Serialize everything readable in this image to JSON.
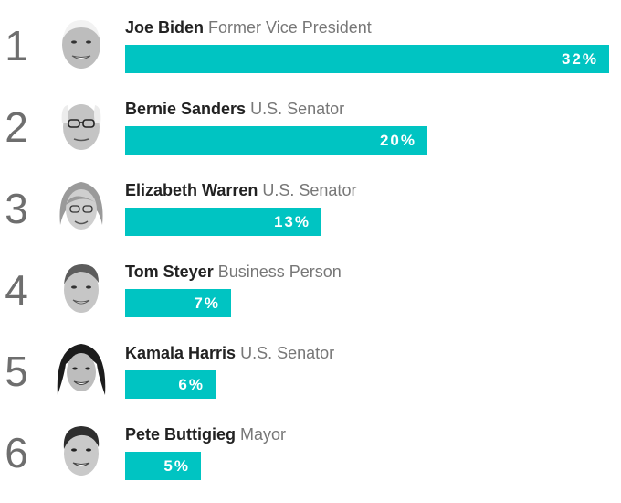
{
  "chart_data": {
    "type": "bar",
    "orientation": "horizontal",
    "bar_color": "#00c4c2",
    "xlim": [
      0,
      32
    ],
    "categories": [
      "Joe Biden",
      "Bernie Sanders",
      "Elizabeth Warren",
      "Tom Steyer",
      "Kamala Harris",
      "Pete Buttigieg"
    ],
    "values": [
      32,
      20,
      13,
      7,
      6,
      5
    ],
    "rows": [
      {
        "rank": "1",
        "name": "Joe Biden",
        "title": "Former Vice President",
        "value": 32,
        "label": "32%"
      },
      {
        "rank": "2",
        "name": "Bernie Sanders",
        "title": "U.S. Senator",
        "value": 20,
        "label": "20%"
      },
      {
        "rank": "3",
        "name": "Elizabeth Warren",
        "title": "U.S. Senator",
        "value": 13,
        "label": "13%"
      },
      {
        "rank": "4",
        "name": "Tom Steyer",
        "title": "Business Person",
        "value": 7,
        "label": "7%"
      },
      {
        "rank": "5",
        "name": "Kamala Harris",
        "title": "U.S. Senator",
        "value": 6,
        "label": "6%"
      },
      {
        "rank": "6",
        "name": "Pete Buttigieg",
        "title": "Mayor",
        "value": 5,
        "label": "5%"
      }
    ]
  }
}
